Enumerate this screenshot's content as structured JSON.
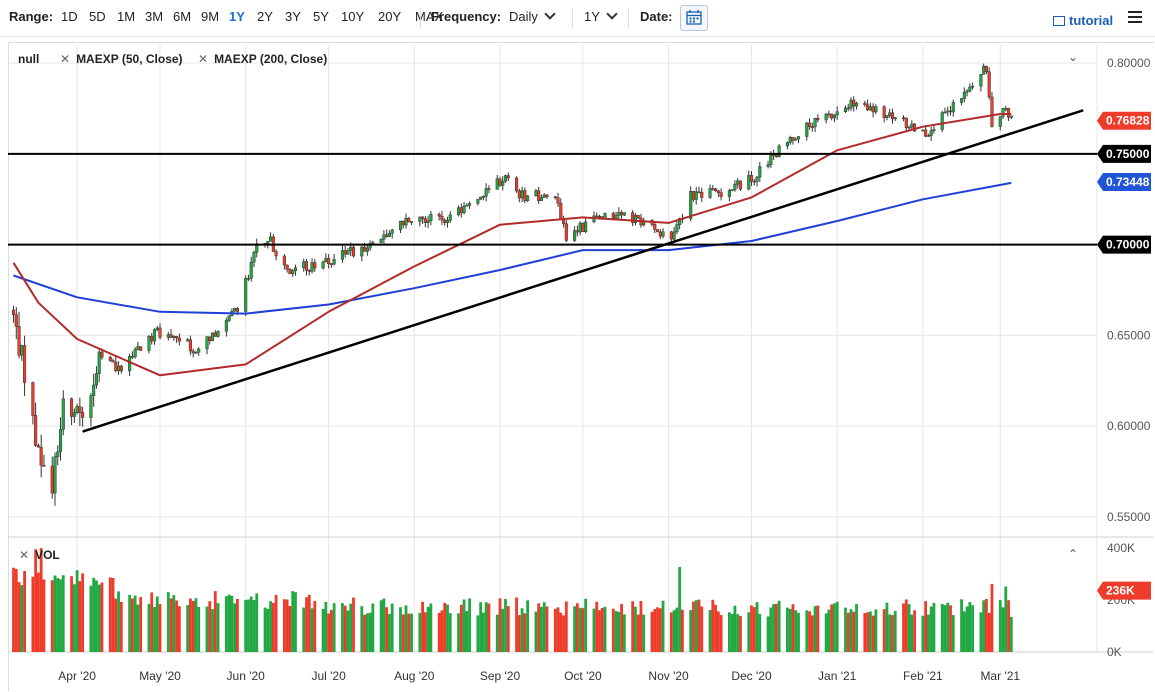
{
  "toolbar": {
    "range_label": "Range:",
    "ranges": [
      "1D",
      "5D",
      "1M",
      "3M",
      "6M",
      "9M",
      "1Y",
      "2Y",
      "3Y",
      "5Y",
      "10Y",
      "20Y",
      "MAX"
    ],
    "active_range": "1Y",
    "frequency_label": "Frequency:",
    "frequency_value": "Daily",
    "period_value": "1Y",
    "date_label": "Date:",
    "tutorial_label": "tutorial"
  },
  "legend": {
    "main_name": "null",
    "ma1": "MAEXP (50, Close)",
    "ma2": "MAEXP (200, Close)",
    "vol_label": "VOL"
  },
  "colors": {
    "up": "#22a843",
    "down": "#ee3b2a",
    "ma50": "#b22a2a",
    "ma200": "#1f3fd6",
    "trend": "#000000",
    "price_badge": "#ee3b2a",
    "ma200_badge": "#1f55d6",
    "level_badge": "#000000"
  },
  "chart_data": {
    "type": "candlestick",
    "x_ticks": [
      "Apr '20",
      "May '20",
      "Jun '20",
      "Jul '20",
      "Aug '20",
      "Sep '20",
      "Oct '20",
      "Nov '20",
      "Dec '20",
      "Jan '21",
      "Feb '21",
      "Mar '21"
    ],
    "y_ticks": [
      "0.80000",
      "0.75000",
      "0.70000",
      "0.65000",
      "0.60000",
      "0.55000"
    ],
    "ylim": [
      0.54,
      0.81
    ],
    "close_path": [
      [
        "2020-03-09",
        0.66
      ],
      [
        "2020-03-13",
        0.63
      ],
      [
        "2020-03-19",
        0.575
      ],
      [
        "2020-03-23",
        0.568
      ],
      [
        "2020-03-27",
        0.612
      ],
      [
        "2020-04-03",
        0.605
      ],
      [
        "2020-04-09",
        0.636
      ],
      [
        "2020-04-17",
        0.632
      ],
      [
        "2020-04-30",
        0.652
      ],
      [
        "2020-05-07",
        0.648
      ],
      [
        "2020-05-15",
        0.642
      ],
      [
        "2020-05-29",
        0.665
      ],
      [
        "2020-06-05",
        0.698
      ],
      [
        "2020-06-10",
        0.702
      ],
      [
        "2020-06-15",
        0.686
      ],
      [
        "2020-06-30",
        0.69
      ],
      [
        "2020-07-15",
        0.699
      ],
      [
        "2020-07-31",
        0.716
      ],
      [
        "2020-08-14",
        0.714
      ],
      [
        "2020-08-31",
        0.735
      ],
      [
        "2020-09-03",
        0.737
      ],
      [
        "2020-09-09",
        0.727
      ],
      [
        "2020-09-21",
        0.727
      ],
      [
        "2020-09-25",
        0.704
      ],
      [
        "2020-10-09",
        0.718
      ],
      [
        "2020-10-21",
        0.714
      ],
      [
        "2020-11-02",
        0.703
      ],
      [
        "2020-11-09",
        0.728
      ],
      [
        "2020-11-20",
        0.729
      ],
      [
        "2020-12-01",
        0.736
      ],
      [
        "2020-12-17",
        0.761
      ],
      [
        "2021-01-06",
        0.777
      ],
      [
        "2021-01-15",
        0.773
      ],
      [
        "2021-01-29",
        0.765
      ],
      [
        "2021-02-02",
        0.762
      ],
      [
        "2021-02-10",
        0.772
      ],
      [
        "2021-02-24",
        0.797
      ],
      [
        "2021-02-26",
        0.767
      ],
      [
        "2021-03-03",
        0.777
      ],
      [
        "2021-03-05",
        0.768
      ]
    ],
    "ma50": [
      [
        "2020-03-09",
        0.69
      ],
      [
        "2020-03-18",
        0.668
      ],
      [
        "2020-04-01",
        0.648
      ],
      [
        "2020-05-01",
        0.628
      ],
      [
        "2020-06-01",
        0.634
      ],
      [
        "2020-07-01",
        0.663
      ],
      [
        "2020-08-01",
        0.688
      ],
      [
        "2020-09-01",
        0.711
      ],
      [
        "2020-10-01",
        0.715
      ],
      [
        "2020-11-01",
        0.712
      ],
      [
        "2020-12-01",
        0.726
      ],
      [
        "2021-01-01",
        0.752
      ],
      [
        "2021-02-01",
        0.765
      ],
      [
        "2021-03-01",
        0.772
      ],
      [
        "2021-03-05",
        0.772
      ]
    ],
    "ma200": [
      [
        "2020-03-09",
        0.683
      ],
      [
        "2020-04-01",
        0.671
      ],
      [
        "2020-05-01",
        0.663
      ],
      [
        "2020-06-01",
        0.662
      ],
      [
        "2020-07-01",
        0.667
      ],
      [
        "2020-08-01",
        0.676
      ],
      [
        "2020-09-01",
        0.686
      ],
      [
        "2020-10-01",
        0.697
      ],
      [
        "2020-11-01",
        0.697
      ],
      [
        "2020-12-01",
        0.702
      ],
      [
        "2021-01-01",
        0.713
      ],
      [
        "2021-02-01",
        0.725
      ],
      [
        "2021-03-05",
        0.734
      ]
    ],
    "trendline": [
      [
        "2020-04-03",
        0.597
      ],
      [
        "2021-03-31",
        0.774
      ]
    ],
    "horizontal_levels": [
      0.75,
      0.7
    ],
    "badges": [
      "0.76828",
      "0.75000",
      "0.73448",
      "0.70000"
    ],
    "volume": {
      "ylim": [
        0,
        400
      ],
      "y_ticks": [
        "400K",
        "200K",
        "0K"
      ],
      "last_badge": "236K",
      "spikes": [
        [
          "2020-03-17",
          395
        ],
        [
          "2020-03-19",
          400
        ],
        [
          "2020-11-05",
          327
        ],
        [
          "2021-02-26",
          262
        ],
        [
          "2021-03-03",
          252
        ]
      ]
    }
  }
}
